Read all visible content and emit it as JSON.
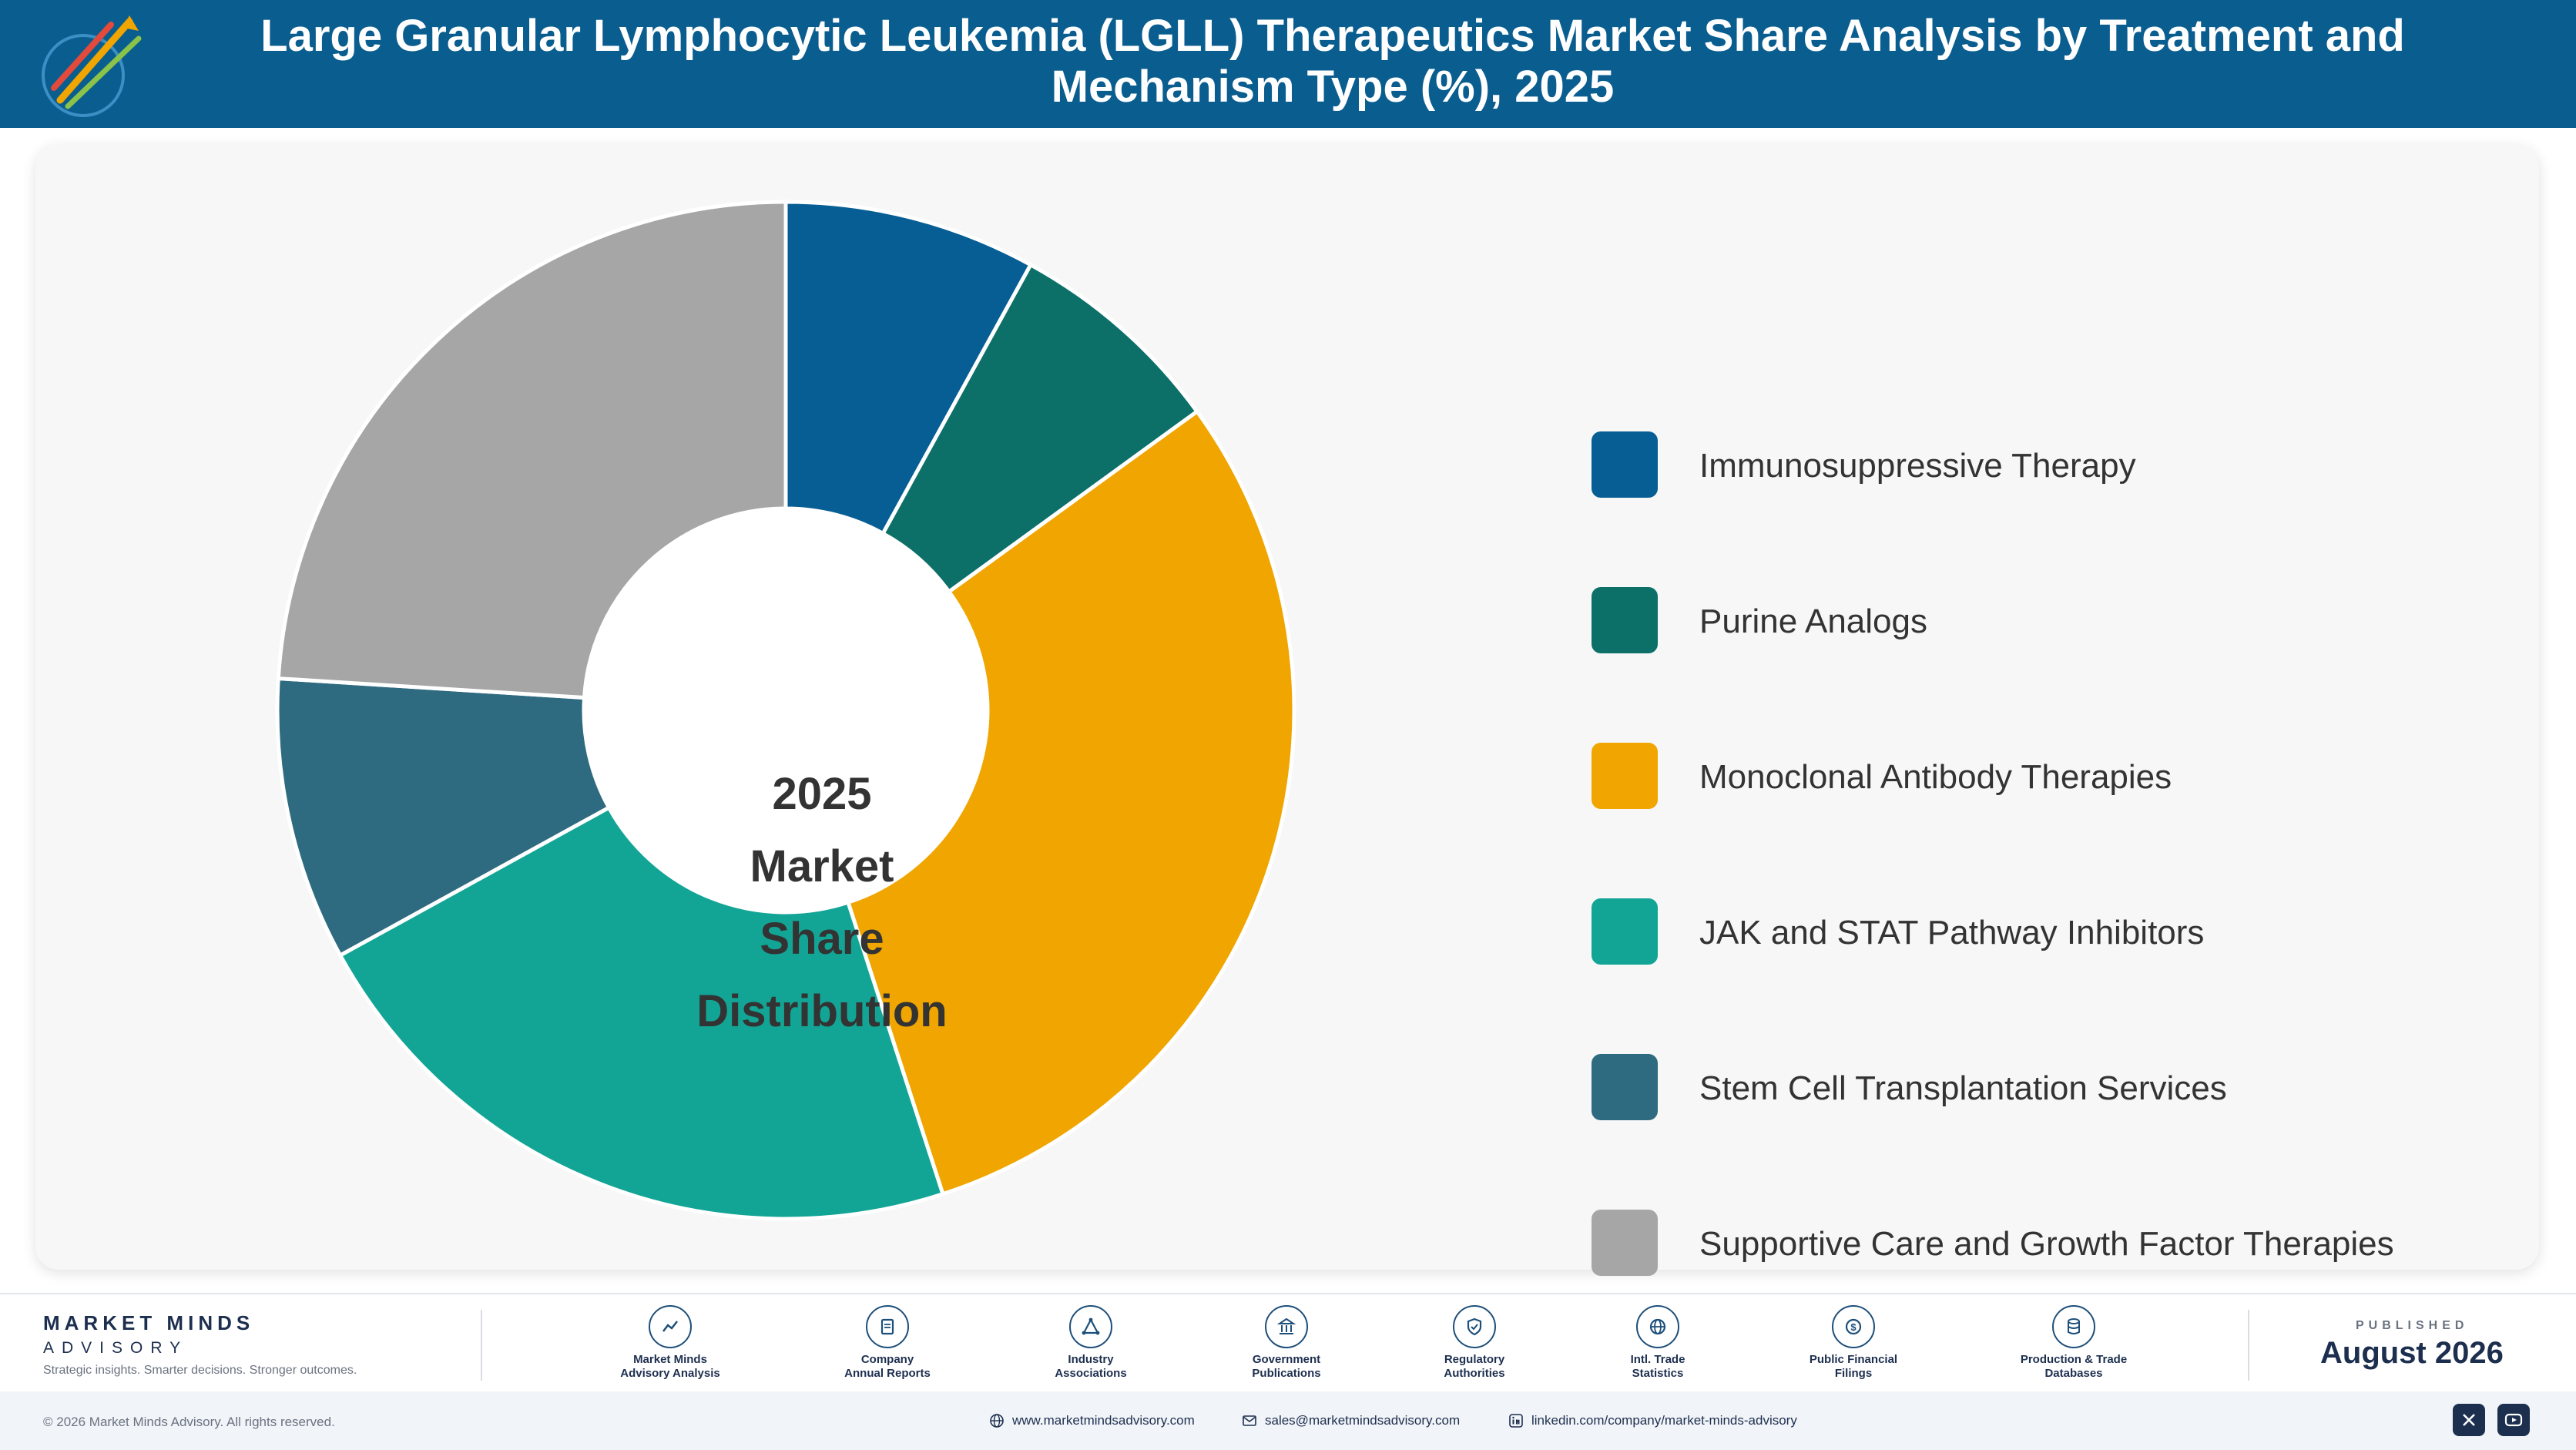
{
  "header": {
    "title": "Large Granular Lymphocytic Leukemia (LGLL) Therapeutics Market Share Analysis by Treatment and Mechanism Type (%), 2025"
  },
  "chart_data": {
    "type": "pie",
    "variant": "donut",
    "center_label": [
      "2025",
      "Market Share",
      "Distribution"
    ],
    "legend_position": "right",
    "categories": [
      "Immunosuppressive Therapy",
      "Purine Analogs",
      "Monoclonal Antibody Therapies",
      "JAK and STAT Pathway Inhibitors",
      "Stem Cell Transplantation Services",
      "Supportive Care and Growth Factor Therapies"
    ],
    "values": [
      8,
      7,
      30,
      22,
      9,
      24
    ],
    "colors": [
      "#065e94",
      "#0c7068",
      "#f0a500",
      "#12a595",
      "#2e6b80",
      "#a6a6a6"
    ]
  },
  "footer": {
    "brand_name": "MARKET MINDS",
    "brand_sub": "ADVISORY",
    "brand_tagline": "Strategic insights. Smarter decisions. Stronger outcomes.",
    "sources": [
      {
        "label": "Market Minds\nAdvisory Analysis",
        "icon": "chart-line-icon"
      },
      {
        "label": "Company\nAnnual Reports",
        "icon": "document-icon"
      },
      {
        "label": "Industry\nAssociations",
        "icon": "network-icon"
      },
      {
        "label": "Government\nPublications",
        "icon": "building-icon"
      },
      {
        "label": "Regulatory\nAuthorities",
        "icon": "shield-icon"
      },
      {
        "label": "Intl. Trade\nStatistics",
        "icon": "globe-icon"
      },
      {
        "label": "Public Financial\nFilings",
        "icon": "coin-icon"
      },
      {
        "label": "Production & Trade\nDatabases",
        "icon": "database-icon"
      }
    ],
    "published_label": "PUBLISHED",
    "published_date": "August 2026",
    "copyright": "© 2026 Market Minds Advisory. All rights reserved.",
    "website": "www.marketmindsadvisory.com",
    "email": "sales@marketmindsadvisory.com",
    "linkedin": "linkedin.com/company/market-minds-advisory"
  }
}
